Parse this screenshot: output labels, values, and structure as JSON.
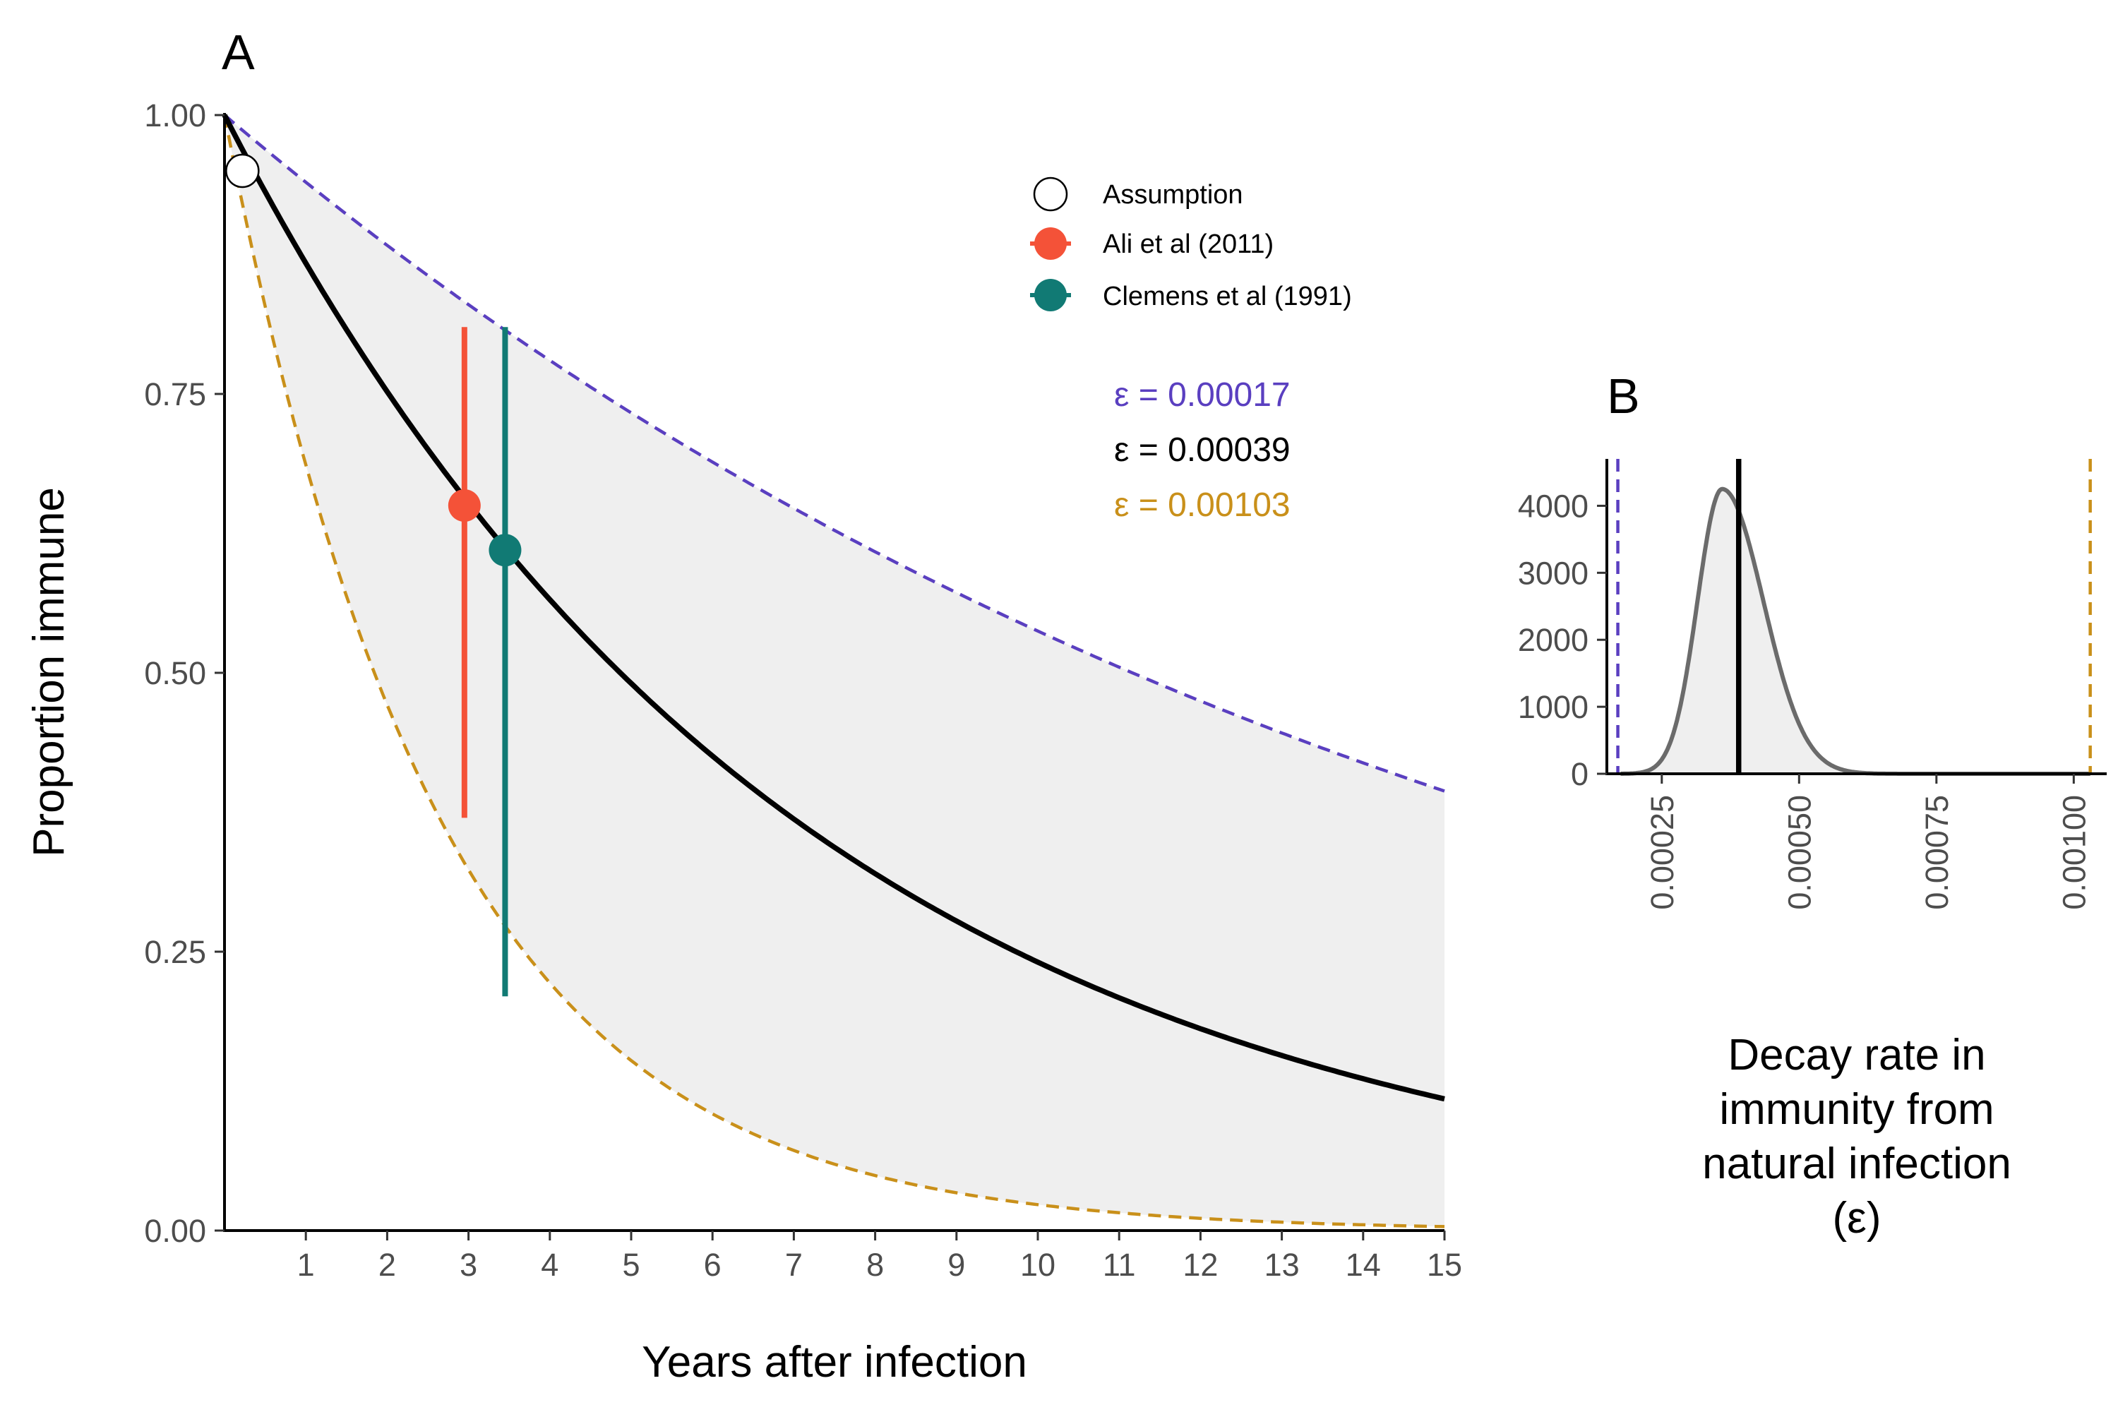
{
  "colors": {
    "fit": "#000000",
    "lower_rate": "#5A3FC0",
    "upper_rate": "#C9901A",
    "band_fill": "#efefef",
    "ali": "#F45238",
    "clemens": "#117A74",
    "density": "#6b6b6b"
  },
  "chart_data": [
    {
      "panel_label": "A",
      "type": "line",
      "xlabel": "Years after infection",
      "ylabel": "Proportion immune",
      "xlim": [
        0,
        15
      ],
      "ylim": [
        0,
        1
      ],
      "x_ticks": [
        "1",
        "2",
        "3",
        "4",
        "5",
        "6",
        "7",
        "8",
        "9",
        "10",
        "11",
        "12",
        "13",
        "14",
        "15"
      ],
      "y_ticks": [
        "0.00",
        "0.25",
        "0.50",
        "0.75",
        "1.00"
      ],
      "grid": false,
      "legend_position": "top-right",
      "series": [
        {
          "key": "fit",
          "epsilon": 0.00039,
          "style": "solid",
          "label": "ε = 0.00039"
        },
        {
          "key": "lower_rate",
          "epsilon": 0.00017,
          "style": "dashed",
          "label": "ε = 0.00017"
        },
        {
          "key": "upper_rate",
          "epsilon": 0.00103,
          "style": "dashed",
          "label": "ε = 0.00103"
        }
      ],
      "points": [
        {
          "key": "assumption",
          "name": "Assumption",
          "x": 0.22,
          "y": 0.95,
          "y_low": null,
          "y_high": null
        },
        {
          "key": "ali",
          "name": "Ali et al (2011)",
          "x": 2.95,
          "y": 0.65,
          "y_low": 0.37,
          "y_high": 0.81
        },
        {
          "key": "clemens",
          "name": "Clemens et al (1991)",
          "x": 3.45,
          "y": 0.61,
          "y_low": 0.21,
          "y_high": 0.81
        }
      ]
    },
    {
      "panel_label": "B",
      "type": "area",
      "xlabel_lines": [
        "Decay rate in",
        "immunity from",
        "natural infection",
        "(ε)"
      ],
      "xlim": [
        0.00015,
        0.00106
      ],
      "ylim": [
        0,
        4700
      ],
      "x_ticks": [
        "0.00025",
        "0.00050",
        "0.00075",
        "0.00100"
      ],
      "y_ticks": [
        "0",
        "1000",
        "2000",
        "3000",
        "4000"
      ],
      "density": {
        "mode": 0.00036,
        "peak": 4250,
        "sigma_left": 4.5e-05,
        "sigma_right": 7.5e-05
      },
      "vlines": [
        {
          "key": "lower_rate",
          "x": 0.00017,
          "style": "dashed"
        },
        {
          "key": "fit",
          "x": 0.00039,
          "style": "solid"
        },
        {
          "key": "upper_rate",
          "x": 0.00103,
          "style": "dashed"
        }
      ]
    }
  ]
}
